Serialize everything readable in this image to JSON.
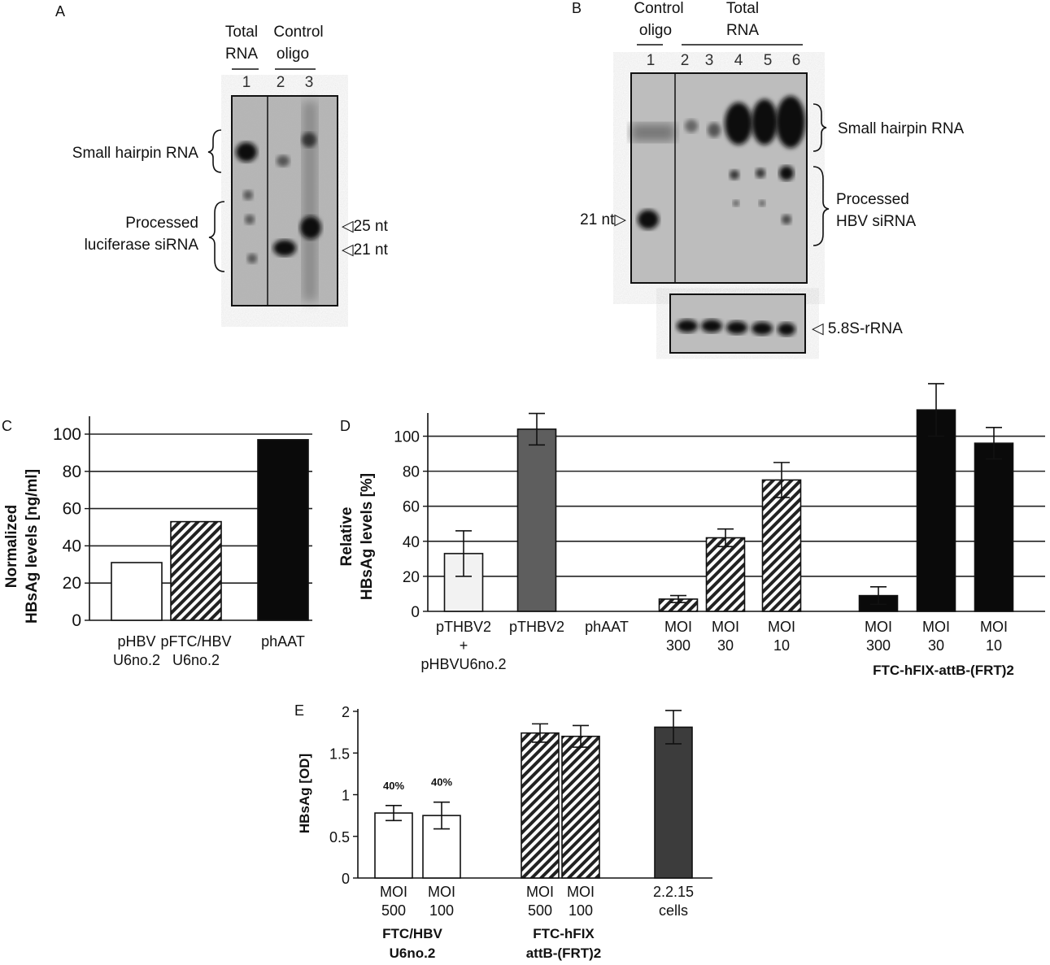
{
  "panels": {
    "A": {
      "letter": "A",
      "header_left": [
        "Total",
        "RNA"
      ],
      "header_right": [
        "Control",
        "oligo"
      ],
      "lanes": [
        "1",
        "2",
        "3"
      ],
      "left_labels": {
        "hairpin": "Small hairpin RNA",
        "processed": [
          "Processed",
          "luciferase siRNA"
        ]
      },
      "markers": [
        "◁25 nt",
        "◁21 nt"
      ]
    },
    "B": {
      "letter": "B",
      "header_left": [
        "Control",
        "oligo"
      ],
      "header_right": [
        "Total",
        "RNA"
      ],
      "lanes": [
        "1",
        "2",
        "3",
        "4",
        "5",
        "6"
      ],
      "marker_left": "21 nt▷",
      "right_labels": {
        "hairpin": "Small hairpin RNA",
        "processed": [
          "Processed",
          "HBV siRNA"
        ]
      },
      "loading_label": "◁ 5.8S-rRNA"
    }
  },
  "chart_data": [
    {
      "panel": "C",
      "type": "bar",
      "ylabel": [
        "Normalized",
        "HBsAg levels [ng/ml]"
      ],
      "ylim": [
        0,
        100
      ],
      "yticks": [
        "0",
        "20",
        "40",
        "60",
        "80",
        "100"
      ],
      "grid": true,
      "categories": [
        [
          "pHBV",
          "U6no.2"
        ],
        [
          "pFTC/HBV",
          "U6no.2"
        ],
        [
          "phAAT"
        ]
      ],
      "values": [
        31,
        53,
        97
      ],
      "fills": [
        "open",
        "hatched",
        "black"
      ]
    },
    {
      "panel": "D",
      "type": "bar",
      "ylabel": [
        "Relative",
        "HBsAg levels [%]"
      ],
      "ylim": [
        0,
        110
      ],
      "yticks": [
        "0",
        "20",
        "40",
        "60",
        "80",
        "100"
      ],
      "grid": true,
      "categories": [
        [
          "pTHBV2",
          "+",
          "pHBVU6no.2"
        ],
        [
          "pTHBV2"
        ],
        [
          "phAAT"
        ],
        [
          "MOI",
          "300"
        ],
        [
          "MOI",
          "30"
        ],
        [
          "MOI",
          "10"
        ],
        [
          "MOI",
          "300"
        ],
        [
          "MOI",
          "30"
        ],
        [
          "MOI",
          "10"
        ]
      ],
      "values": [
        33,
        104,
        0,
        7,
        42,
        75,
        9,
        115,
        96
      ],
      "errors": [
        13,
        9,
        0,
        2,
        5,
        10,
        5,
        15,
        9
      ],
      "fills": [
        "light",
        "gray",
        "none",
        "hatched",
        "hatched",
        "hatched",
        "black",
        "black",
        "black"
      ],
      "group_label": "FTC-hFIX-attB-(FRT)2"
    },
    {
      "panel": "E",
      "type": "bar",
      "ylabel": "HBsAg [OD]",
      "ylim": [
        0,
        2
      ],
      "yticks": [
        "0",
        "0.5",
        "1",
        "1.5",
        "2"
      ],
      "grid": false,
      "categories": [
        [
          "MOI",
          "500"
        ],
        [
          "MOI",
          "100"
        ],
        [
          "MOI",
          "500"
        ],
        [
          "MOI",
          "100"
        ],
        [
          "2.2.15",
          "cells"
        ]
      ],
      "values": [
        0.78,
        0.75,
        1.74,
        1.7,
        1.81
      ],
      "errors": [
        0.09,
        0.16,
        0.11,
        0.13,
        0.2
      ],
      "fills": [
        "open",
        "open",
        "hatched",
        "hatched",
        "darkgray"
      ],
      "annotations": [
        "40%",
        "40%",
        "",
        "",
        ""
      ],
      "group_labels": [
        [
          "FTC/HBV",
          "U6no.2"
        ],
        [
          "FTC-hFIX",
          "attB-(FRT)2"
        ]
      ]
    }
  ]
}
